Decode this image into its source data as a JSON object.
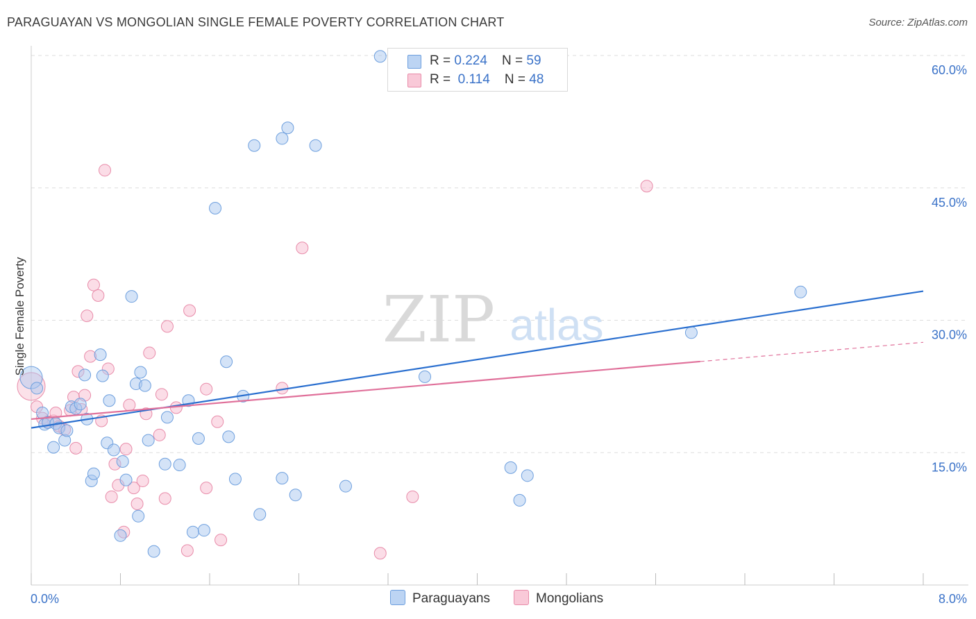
{
  "header": {
    "title": "PARAGUAYAN VS MONGOLIAN SINGLE FEMALE POVERTY CORRELATION CHART",
    "source": "Source: ZipAtlas.com"
  },
  "watermark": {
    "zip": "ZIP",
    "atlas": "atlas"
  },
  "legend_top": {
    "rows": [
      {
        "r_label": "R = ",
        "r_value": "0.224",
        "n_label": "N = ",
        "n_value": "59"
      },
      {
        "r_label": "R = ",
        "r_value": "0.114",
        "n_label": "N = ",
        "n_value": "48"
      }
    ]
  },
  "legend_bottom": {
    "series_a": "Paraguayans",
    "series_b": "Mongolians"
  },
  "colors": {
    "paraguayans_fill": "#a9c8f0",
    "paraguayans_stroke": "#6d9fde",
    "paraguayans_line": "#2a6fcf",
    "mongolians_fill": "#f7bccf",
    "mongolians_stroke": "#e88ba9",
    "mongolians_line": "#e0709a",
    "tick_label": "#3a72c8",
    "grid": "#dddddd"
  },
  "chart_data": {
    "type": "scatter",
    "title": "PARAGUAYAN VS MONGOLIAN SINGLE FEMALE POVERTY CORRELATION CHART",
    "xlabel": "",
    "ylabel": "Single Female Poverty",
    "xlim": [
      0,
      8
    ],
    "ylim": [
      0,
      60
    ],
    "x_tick_labels": [
      "0.0%",
      "8.0%"
    ],
    "y_ticks": [
      15,
      30,
      45,
      60
    ],
    "y_tick_labels": [
      "15.0%",
      "30.0%",
      "45.0%",
      "60.0%"
    ],
    "grid": true,
    "legend_placement": "top-center",
    "series": [
      {
        "name": "Paraguayans",
        "r": 0.224,
        "n": 59,
        "trend": {
          "x": [
            0,
            8
          ],
          "y": [
            17.8,
            33.3
          ],
          "dashed_from": null
        },
        "points": [
          {
            "x": 0.0,
            "y": 23.5,
            "big": true
          },
          {
            "x": 0.05,
            "y": 22.3
          },
          {
            "x": 0.1,
            "y": 19.5
          },
          {
            "x": 0.12,
            "y": 18.2
          },
          {
            "x": 0.15,
            "y": 18.4
          },
          {
            "x": 0.2,
            "y": 15.6
          },
          {
            "x": 0.22,
            "y": 18.3
          },
          {
            "x": 0.25,
            "y": 17.8
          },
          {
            "x": 0.3,
            "y": 16.4
          },
          {
            "x": 0.32,
            "y": 17.5
          },
          {
            "x": 0.36,
            "y": 20.2
          },
          {
            "x": 0.4,
            "y": 20.0
          },
          {
            "x": 0.44,
            "y": 20.5
          },
          {
            "x": 0.48,
            "y": 23.8
          },
          {
            "x": 0.5,
            "y": 18.8
          },
          {
            "x": 0.54,
            "y": 11.8
          },
          {
            "x": 0.56,
            "y": 12.6
          },
          {
            "x": 0.62,
            "y": 26.1
          },
          {
            "x": 0.64,
            "y": 23.7
          },
          {
            "x": 0.68,
            "y": 16.1
          },
          {
            "x": 0.7,
            "y": 20.9
          },
          {
            "x": 0.74,
            "y": 15.3
          },
          {
            "x": 0.8,
            "y": 5.6
          },
          {
            "x": 0.82,
            "y": 14.0
          },
          {
            "x": 0.85,
            "y": 11.9
          },
          {
            "x": 0.9,
            "y": 32.7
          },
          {
            "x": 0.94,
            "y": 22.8
          },
          {
            "x": 0.96,
            "y": 7.8
          },
          {
            "x": 0.98,
            "y": 24.1
          },
          {
            "x": 1.02,
            "y": 22.6
          },
          {
            "x": 1.05,
            "y": 16.4
          },
          {
            "x": 1.1,
            "y": 3.8
          },
          {
            "x": 1.2,
            "y": 13.7
          },
          {
            "x": 1.22,
            "y": 19.0
          },
          {
            "x": 1.33,
            "y": 13.6
          },
          {
            "x": 1.41,
            "y": 20.9
          },
          {
            "x": 1.45,
            "y": 6.0
          },
          {
            "x": 1.5,
            "y": 16.6
          },
          {
            "x": 1.55,
            "y": 6.2
          },
          {
            "x": 1.65,
            "y": 42.7
          },
          {
            "x": 1.75,
            "y": 25.3
          },
          {
            "x": 1.77,
            "y": 16.8
          },
          {
            "x": 1.83,
            "y": 12.0
          },
          {
            "x": 1.9,
            "y": 21.4
          },
          {
            "x": 2.0,
            "y": 49.8
          },
          {
            "x": 2.05,
            "y": 8.0
          },
          {
            "x": 2.25,
            "y": 12.1
          },
          {
            "x": 2.25,
            "y": 50.6
          },
          {
            "x": 2.3,
            "y": 51.8
          },
          {
            "x": 2.37,
            "y": 10.2
          },
          {
            "x": 2.55,
            "y": 49.8
          },
          {
            "x": 2.82,
            "y": 11.2
          },
          {
            "x": 3.13,
            "y": 59.9
          },
          {
            "x": 3.53,
            "y": 23.6
          },
          {
            "x": 4.3,
            "y": 13.3
          },
          {
            "x": 4.38,
            "y": 9.6
          },
          {
            "x": 4.45,
            "y": 12.4
          },
          {
            "x": 5.92,
            "y": 28.6
          },
          {
            "x": 6.9,
            "y": 33.2
          }
        ]
      },
      {
        "name": "Mongolians",
        "r": 0.114,
        "n": 48,
        "trend": {
          "x": [
            0,
            8
          ],
          "y": [
            18.8,
            27.5
          ],
          "dashed_from": 6.0
        },
        "points": [
          {
            "x": 0.0,
            "y": 22.5,
            "big": true
          },
          {
            "x": 0.05,
            "y": 20.2
          },
          {
            "x": 0.1,
            "y": 18.9
          },
          {
            "x": 0.15,
            "y": 18.5
          },
          {
            "x": 0.2,
            "y": 18.6
          },
          {
            "x": 0.22,
            "y": 19.5
          },
          {
            "x": 0.25,
            "y": 18.0
          },
          {
            "x": 0.3,
            "y": 17.6
          },
          {
            "x": 0.35,
            "y": 19.8
          },
          {
            "x": 0.38,
            "y": 21.3
          },
          {
            "x": 0.4,
            "y": 15.5
          },
          {
            "x": 0.42,
            "y": 24.2
          },
          {
            "x": 0.45,
            "y": 19.9
          },
          {
            "x": 0.48,
            "y": 21.5
          },
          {
            "x": 0.5,
            "y": 30.5
          },
          {
            "x": 0.53,
            "y": 25.9
          },
          {
            "x": 0.56,
            "y": 34.0
          },
          {
            "x": 0.6,
            "y": 32.8
          },
          {
            "x": 0.63,
            "y": 18.6
          },
          {
            "x": 0.66,
            "y": 47.0
          },
          {
            "x": 0.69,
            "y": 24.5
          },
          {
            "x": 0.72,
            "y": 10.0
          },
          {
            "x": 0.75,
            "y": 13.7
          },
          {
            "x": 0.78,
            "y": 11.3
          },
          {
            "x": 0.83,
            "y": 6.0
          },
          {
            "x": 0.85,
            "y": 15.4
          },
          {
            "x": 0.88,
            "y": 20.4
          },
          {
            "x": 0.92,
            "y": 11.0
          },
          {
            "x": 0.95,
            "y": 9.2
          },
          {
            "x": 1.0,
            "y": 11.8
          },
          {
            "x": 1.03,
            "y": 19.4
          },
          {
            "x": 1.06,
            "y": 26.3
          },
          {
            "x": 1.15,
            "y": 17.0
          },
          {
            "x": 1.17,
            "y": 21.6
          },
          {
            "x": 1.2,
            "y": 9.8
          },
          {
            "x": 1.22,
            "y": 29.3
          },
          {
            "x": 1.3,
            "y": 20.1
          },
          {
            "x": 1.4,
            "y": 3.9
          },
          {
            "x": 1.42,
            "y": 31.1
          },
          {
            "x": 1.57,
            "y": 11.0
          },
          {
            "x": 1.57,
            "y": 22.2
          },
          {
            "x": 1.67,
            "y": 18.5
          },
          {
            "x": 1.7,
            "y": 5.1
          },
          {
            "x": 2.25,
            "y": 22.3
          },
          {
            "x": 2.43,
            "y": 38.2
          },
          {
            "x": 3.13,
            "y": 3.6
          },
          {
            "x": 3.42,
            "y": 10.0
          },
          {
            "x": 5.52,
            "y": 45.2
          }
        ]
      }
    ]
  }
}
